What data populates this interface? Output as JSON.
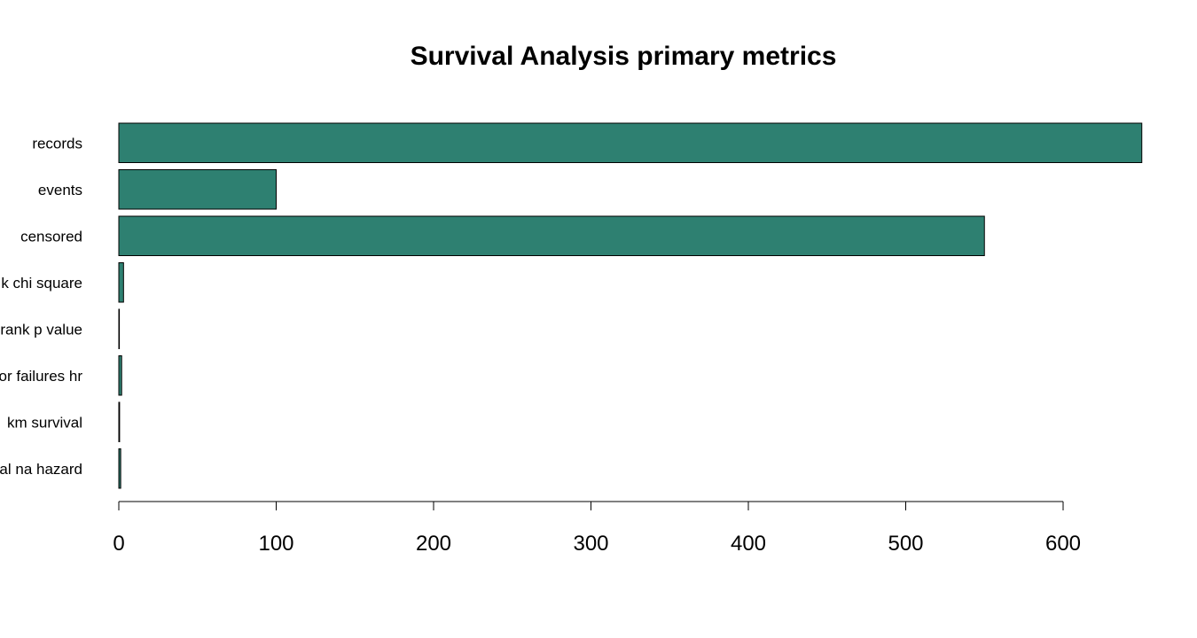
{
  "chart_data": {
    "type": "bar",
    "orientation": "horizontal",
    "title": "Survival Analysis primary metrics",
    "xlabel": "",
    "ylabel": "",
    "categories": [
      "records",
      "events",
      "censored",
      "log rank chi square",
      "log rank p value",
      "motor failures hr",
      "median km survival",
      "cumulative final na hazard"
    ],
    "visible_category_text": [
      "records",
      "events",
      "censored",
      "k chi square",
      "rank p value",
      "or failures hr",
      "km survival",
      "al na hazard"
    ],
    "values": [
      650,
      100,
      550,
      3,
      0.05,
      1.8,
      0.5,
      1.2
    ],
    "xlim": [
      0,
      650
    ],
    "xticks": [
      0,
      100,
      200,
      300,
      400,
      500,
      600
    ],
    "grid": false,
    "legend": "none",
    "bar_color": "#2e8071",
    "bar_edge_color": "#000000"
  }
}
